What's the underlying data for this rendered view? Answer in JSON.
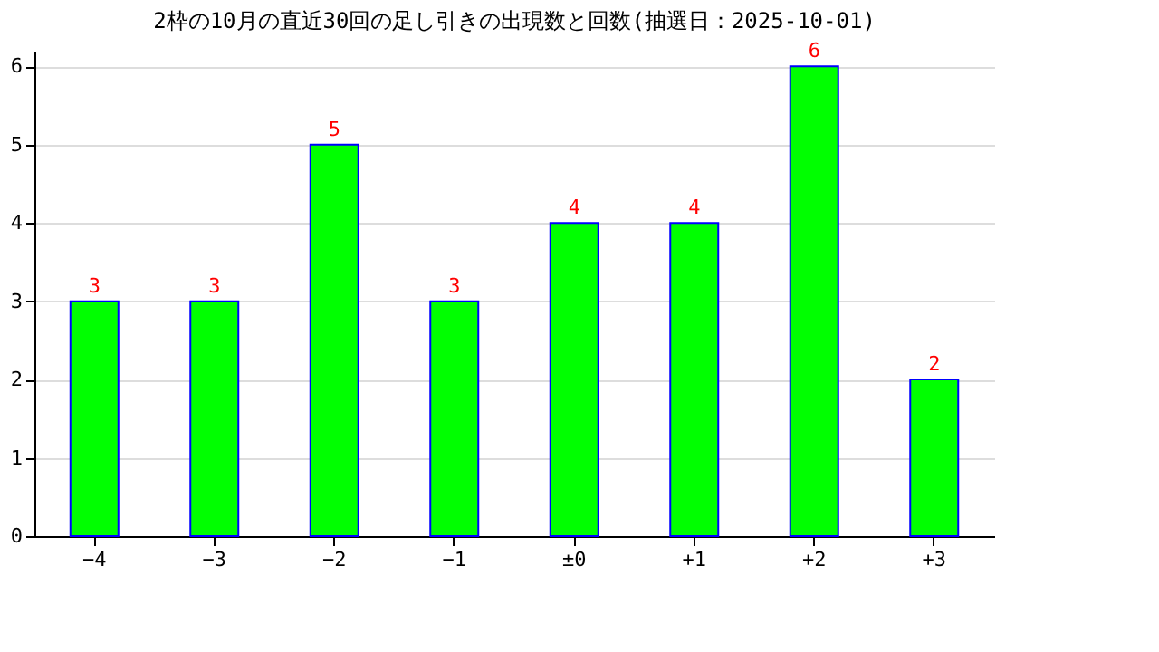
{
  "chart_data": {
    "type": "bar",
    "title": "2枠の10月の直近30回の足し引きの出現数と回数(抽選日：2025-10-01)",
    "categories": [
      "−4",
      "−3",
      "−2",
      "−1",
      "±0",
      "+1",
      "+2",
      "+3"
    ],
    "values": [
      3,
      3,
      5,
      3,
      4,
      4,
      6,
      2
    ],
    "color": "#00ff00",
    "ylim": [
      0,
      6.2
    ],
    "yticks": [
      0,
      1,
      2,
      3,
      4,
      5,
      6
    ],
    "grid": "y",
    "data_labels": true
  }
}
